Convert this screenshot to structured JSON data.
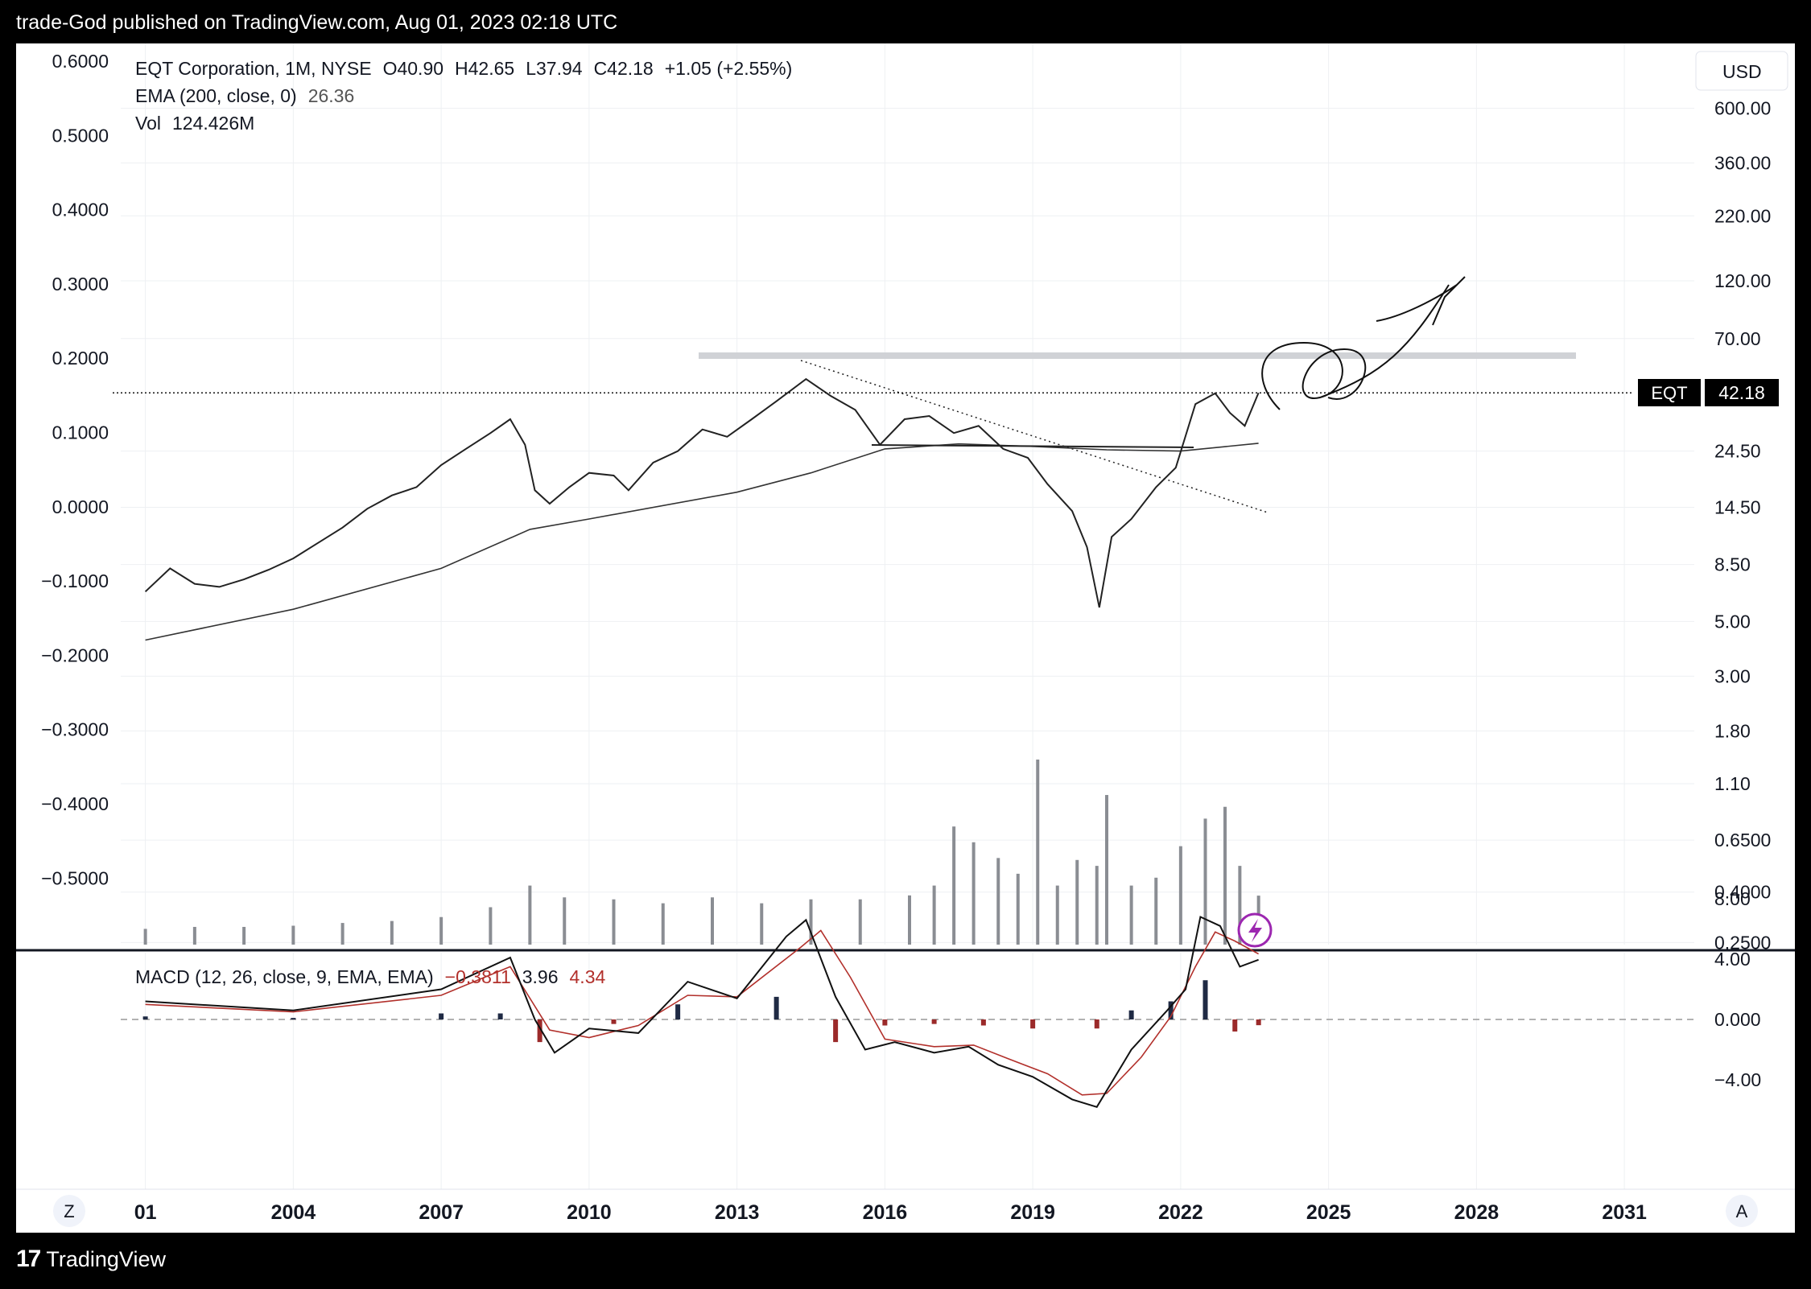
{
  "header": {
    "publisher": "trade-God published on TradingView.com, Aug 01, 2023 02:18 UTC"
  },
  "legend": {
    "symbol": "EQT Corporation, 1M, NYSE",
    "open": "O40.90",
    "high": "H42.65",
    "low": "L37.94",
    "close": "C42.18",
    "change": "+1.05 (+2.55%)",
    "ema_label": "EMA (200, close, 0)",
    "ema_value": "26.36",
    "vol_label": "Vol",
    "vol_value": "124.426M"
  },
  "currency": "USD",
  "price_tag": {
    "symbol": "EQT",
    "value": "42.18"
  },
  "macd": {
    "label": "MACD (12, 26, close, 9, EMA, EMA)",
    "hist": "−0.3811",
    "macd": "3.96",
    "signal": "4.34"
  },
  "footer": {
    "logo": "17",
    "brand": "TradingView"
  },
  "buttons": {
    "z": "Z",
    "a": "A"
  },
  "chart_data": {
    "type": "line",
    "left_axis_ticks": [
      "0.6000",
      "0.5000",
      "0.4000",
      "0.3000",
      "0.2000",
      "0.1000",
      "0.0000",
      "−0.1000",
      "−0.2000",
      "−0.3000",
      "−0.4000",
      "−0.5000"
    ],
    "price_axis": {
      "scale": "log",
      "ticks": [
        "600.00",
        "360.00",
        "220.00",
        "120.00",
        "70.00",
        "24.50",
        "14.50",
        "8.50",
        "5.00",
        "3.00",
        "1.80",
        "1.10",
        "0.6500",
        "0.4000",
        "0.2500"
      ]
    },
    "macd_axis": {
      "ticks": [
        "8.00",
        "4.00",
        "0.000",
        "−4.00"
      ]
    },
    "x_axis": {
      "ticks": [
        "01",
        "2004",
        "2007",
        "2010",
        "2013",
        "2016",
        "2019",
        "2022",
        "2025",
        "2028",
        "2031"
      ]
    },
    "price_series": {
      "name": "EQT",
      "points": [
        [
          2001.0,
          6.6
        ],
        [
          2001.5,
          8.2
        ],
        [
          2002.0,
          7.1
        ],
        [
          2002.5,
          6.9
        ],
        [
          2003.0,
          7.4
        ],
        [
          2003.5,
          8.1
        ],
        [
          2004.0,
          9.0
        ],
        [
          2004.5,
          10.4
        ],
        [
          2005.0,
          12.0
        ],
        [
          2005.5,
          14.3
        ],
        [
          2006.0,
          16.2
        ],
        [
          2006.5,
          17.5
        ],
        [
          2007.0,
          21.5
        ],
        [
          2007.5,
          25.0
        ],
        [
          2008.0,
          29.0
        ],
        [
          2008.4,
          33.0
        ],
        [
          2008.7,
          26.0
        ],
        [
          2008.9,
          17.0
        ],
        [
          2009.2,
          15.0
        ],
        [
          2009.6,
          17.5
        ],
        [
          2010.0,
          20.0
        ],
        [
          2010.5,
          19.5
        ],
        [
          2010.8,
          17.0
        ],
        [
          2011.3,
          22.0
        ],
        [
          2011.8,
          24.5
        ],
        [
          2012.3,
          30.0
        ],
        [
          2012.8,
          28.0
        ],
        [
          2013.3,
          33.0
        ],
        [
          2013.8,
          39.0
        ],
        [
          2014.4,
          48.0
        ],
        [
          2014.9,
          41.0
        ],
        [
          2015.4,
          36.0
        ],
        [
          2015.9,
          26.0
        ],
        [
          2016.4,
          33.0
        ],
        [
          2016.9,
          34.0
        ],
        [
          2017.4,
          29.0
        ],
        [
          2017.9,
          31.0
        ],
        [
          2018.4,
          25.0
        ],
        [
          2018.9,
          23.0
        ],
        [
          2019.3,
          18.0
        ],
        [
          2019.8,
          14.0
        ],
        [
          2020.1,
          10.0
        ],
        [
          2020.35,
          5.7
        ],
        [
          2020.6,
          11.0
        ],
        [
          2021.0,
          13.0
        ],
        [
          2021.5,
          17.5
        ],
        [
          2021.9,
          21.0
        ],
        [
          2022.3,
          38.0
        ],
        [
          2022.7,
          42.0
        ],
        [
          2023.0,
          35.0
        ],
        [
          2023.3,
          31.0
        ],
        [
          2023.58,
          42.18
        ]
      ]
    },
    "ema_series": {
      "name": "EMA (200, close, 0)",
      "points": [
        [
          2001.0,
          4.2
        ],
        [
          2004.0,
          5.6
        ],
        [
          2007.0,
          8.2
        ],
        [
          2008.8,
          11.8
        ],
        [
          2010.0,
          13.0
        ],
        [
          2013.0,
          16.7
        ],
        [
          2014.5,
          20.0
        ],
        [
          2016.0,
          25.0
        ],
        [
          2017.5,
          26.2
        ],
        [
          2019.0,
          25.6
        ],
        [
          2020.5,
          24.8
        ],
        [
          2022.0,
          24.5
        ],
        [
          2023.58,
          26.36
        ]
      ]
    },
    "volume_millions": {
      "name": "Vol",
      "bars": [
        [
          2001,
          40
        ],
        [
          2002,
          45
        ],
        [
          2003,
          45
        ],
        [
          2004,
          48
        ],
        [
          2005,
          55
        ],
        [
          2006,
          60
        ],
        [
          2007,
          70
        ],
        [
          2008,
          95
        ],
        [
          2008.8,
          150
        ],
        [
          2009.5,
          120
        ],
        [
          2010.5,
          115
        ],
        [
          2011.5,
          105
        ],
        [
          2012.5,
          120
        ],
        [
          2013.5,
          105
        ],
        [
          2014.5,
          115
        ],
        [
          2015.5,
          115
        ],
        [
          2016.5,
          125
        ],
        [
          2017.0,
          150
        ],
        [
          2017.4,
          300
        ],
        [
          2017.8,
          260
        ],
        [
          2018.3,
          220
        ],
        [
          2018.7,
          180
        ],
        [
          2019.1,
          470
        ],
        [
          2019.5,
          150
        ],
        [
          2019.9,
          215
        ],
        [
          2020.3,
          200
        ],
        [
          2020.5,
          380
        ],
        [
          2021.0,
          150
        ],
        [
          2021.5,
          170
        ],
        [
          2022.0,
          250
        ],
        [
          2022.5,
          320
        ],
        [
          2022.9,
          350
        ],
        [
          2023.2,
          200
        ],
        [
          2023.58,
          124.426
        ]
      ]
    },
    "macd_series": {
      "macd_points": [
        [
          2001,
          1.2
        ],
        [
          2004,
          0.6
        ],
        [
          2007,
          2.0
        ],
        [
          2008.4,
          4.1
        ],
        [
          2008.9,
          0.0
        ],
        [
          2009.3,
          -2.2
        ],
        [
          2010.0,
          -0.6
        ],
        [
          2011.0,
          -0.9
        ],
        [
          2012.0,
          2.5
        ],
        [
          2013.0,
          1.4
        ],
        [
          2014.0,
          5.5
        ],
        [
          2014.4,
          6.6
        ],
        [
          2015.0,
          1.5
        ],
        [
          2015.6,
          -2.0
        ],
        [
          2016.2,
          -1.5
        ],
        [
          2017.0,
          -2.2
        ],
        [
          2017.7,
          -1.8
        ],
        [
          2018.3,
          -3.0
        ],
        [
          2019.0,
          -3.8
        ],
        [
          2019.8,
          -5.3
        ],
        [
          2020.3,
          -5.8
        ],
        [
          2021.0,
          -2.0
        ],
        [
          2021.7,
          0.5
        ],
        [
          2022.1,
          2.0
        ],
        [
          2022.4,
          6.8
        ],
        [
          2022.8,
          6.2
        ],
        [
          2023.2,
          3.5
        ],
        [
          2023.58,
          3.96
        ]
      ],
      "signal_points": [
        [
          2001,
          1.0
        ],
        [
          2004,
          0.5
        ],
        [
          2007,
          1.6
        ],
        [
          2008.4,
          3.5
        ],
        [
          2009.2,
          -0.7
        ],
        [
          2010.0,
          -1.2
        ],
        [
          2011.0,
          -0.4
        ],
        [
          2012.0,
          1.6
        ],
        [
          2013.0,
          1.5
        ],
        [
          2014.3,
          4.8
        ],
        [
          2014.7,
          5.9
        ],
        [
          2015.3,
          2.8
        ],
        [
          2016.0,
          -1.3
        ],
        [
          2017.0,
          -1.8
        ],
        [
          2017.8,
          -1.7
        ],
        [
          2018.5,
          -2.6
        ],
        [
          2019.3,
          -3.6
        ],
        [
          2020.0,
          -5.0
        ],
        [
          2020.5,
          -4.9
        ],
        [
          2021.2,
          -2.5
        ],
        [
          2021.8,
          0.2
        ],
        [
          2022.3,
          3.5
        ],
        [
          2022.7,
          5.8
        ],
        [
          2023.1,
          5.2
        ],
        [
          2023.58,
          4.34
        ]
      ],
      "histogram": [
        [
          2001,
          0.2
        ],
        [
          2004,
          0.1
        ],
        [
          2007,
          0.4
        ],
        [
          2008.2,
          0.4
        ],
        [
          2009.0,
          -1.5
        ],
        [
          2010.5,
          -0.3
        ],
        [
          2011.8,
          1.0
        ],
        [
          2013.8,
          1.5
        ],
        [
          2015.0,
          -1.5
        ],
        [
          2016.0,
          -0.4
        ],
        [
          2017.0,
          -0.3
        ],
        [
          2018.0,
          -0.4
        ],
        [
          2019.0,
          -0.6
        ],
        [
          2020.3,
          -0.6
        ],
        [
          2021.0,
          0.6
        ],
        [
          2021.8,
          1.2
        ],
        [
          2022.5,
          2.6
        ],
        [
          2023.1,
          -0.8
        ],
        [
          2023.58,
          -0.3811
        ]
      ]
    },
    "current_price_line": 42.18,
    "resistance_level": 52,
    "grid": true,
    "legend_position": "top-left"
  }
}
